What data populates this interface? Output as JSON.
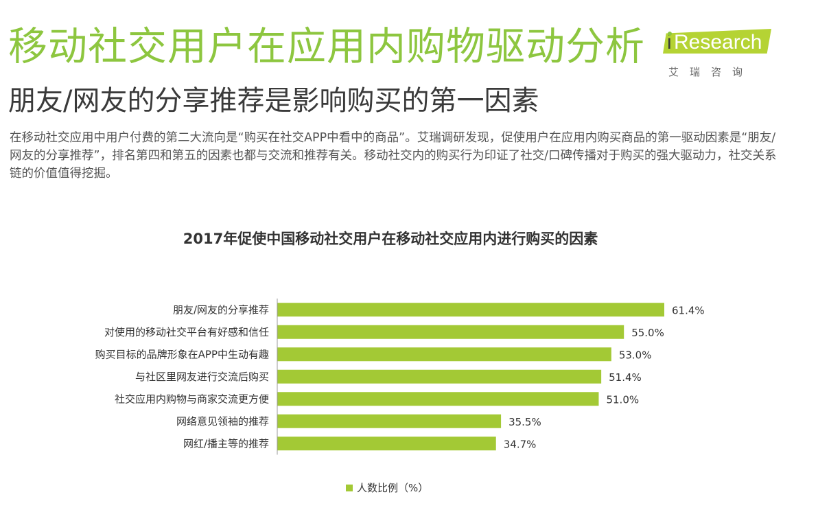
{
  "header": {
    "title": "移动社交用户在应用内购物驱动分析",
    "subtitle": "朋友/网友的分享推荐是影响购买的第一因素",
    "body": "在移动社交应用中用户付费的第二大流向是“购买在社交APP中看中的商品”。艾瑞调研发现，促使用户在应用内购买商品的第一驱动因素是“朋友/网友的分享推荐”，排名第四和第五的因素也都与交流和推荐有关。移动社交内的购买行为印证了社交/口碑传播对于购买的强大驱动力，社交关系链的价值值得挖掘。"
  },
  "logo": {
    "name": "Research",
    "cn": "艾瑞咨询"
  },
  "colors": {
    "accent": "#8dc63f",
    "bar": "#a3c935"
  },
  "chart_data": {
    "type": "bar",
    "orientation": "horizontal",
    "title": "2017年促使中国移动社交用户在移动社交应用内进行购买的因素",
    "categories": [
      "朋友/网友的分享推荐",
      "对使用的移动社交平台有好感和信任",
      "购买目标的品牌形象在APP中生动有趣",
      "与社区里网友进行交流后购买",
      "社交应用内购物与商家交流更方便",
      "网络意见领袖的推荐",
      "网红/播主等的推荐"
    ],
    "series": [
      {
        "name": "人数比例（%）",
        "values": [
          61.4,
          55.0,
          53.0,
          51.4,
          51.0,
          35.5,
          34.7
        ]
      }
    ],
    "value_labels": [
      "61.4%",
      "55.0%",
      "53.0%",
      "51.4%",
      "51.0%",
      "35.5%",
      "34.7%"
    ],
    "legend_position": "bottom",
    "grid": false
  }
}
